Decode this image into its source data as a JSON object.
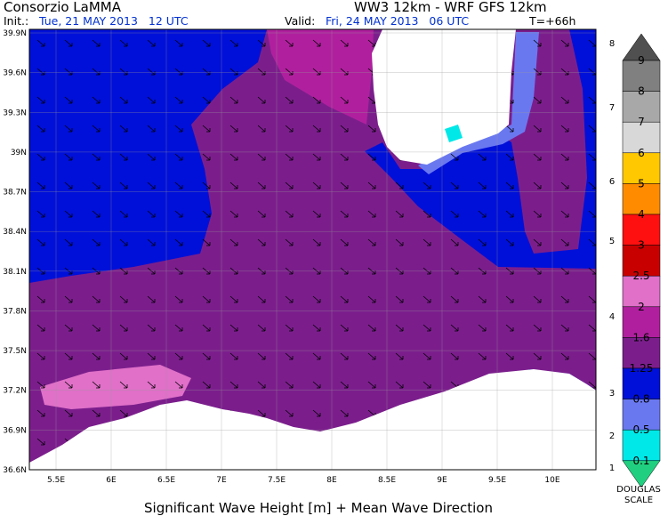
{
  "header": {
    "org": "Consorzio LaMMA",
    "model": "WW3 12km - WRF GFS 12km",
    "init_label": "Init.:",
    "init": "Tue, 21 MAY 2013   12 UTC",
    "valid_label": "Valid:",
    "valid": "Fri, 24 MAY 2013   06 UTC",
    "lead": "T=+66h"
  },
  "map": {
    "lat_labels": [
      "39.9N",
      "39.6N",
      "39.3N",
      "39N",
      "38.7N",
      "38.4N",
      "38.1N",
      "37.8N",
      "37.5N",
      "37.2N",
      "36.9N",
      "36.6N"
    ],
    "lon_labels": [
      "5.5E",
      "6E",
      "6.5E",
      "7E",
      "7.5E",
      "8E",
      "8.5E",
      "9E",
      "9.5E",
      "10E"
    ],
    "caption": "Significant Wave Height [m] + Mean Wave Direction"
  },
  "legend": {
    "labels": [
      "9",
      "8",
      "7",
      "6",
      "5",
      "4",
      "3",
      "2.5",
      "2",
      "1.6",
      "1.25",
      "0.8",
      "0.5",
      "0.1"
    ],
    "colors": [
      "#505050",
      "#808080",
      "#a8a8a8",
      "#d8d8d8",
      "#ffc800",
      "#ff8c00",
      "#ff1010",
      "#c80000",
      "#e070c8",
      "#b0209e",
      "#7b1e8c",
      "#0010d8",
      "#6a78f0",
      "#00e8e8",
      "#20d080"
    ],
    "douglas": [
      "8",
      "7",
      "6",
      "5",
      "4",
      "3",
      "2",
      "1"
    ],
    "douglas_title": [
      "DOUGLAS",
      "SCALE"
    ]
  }
}
